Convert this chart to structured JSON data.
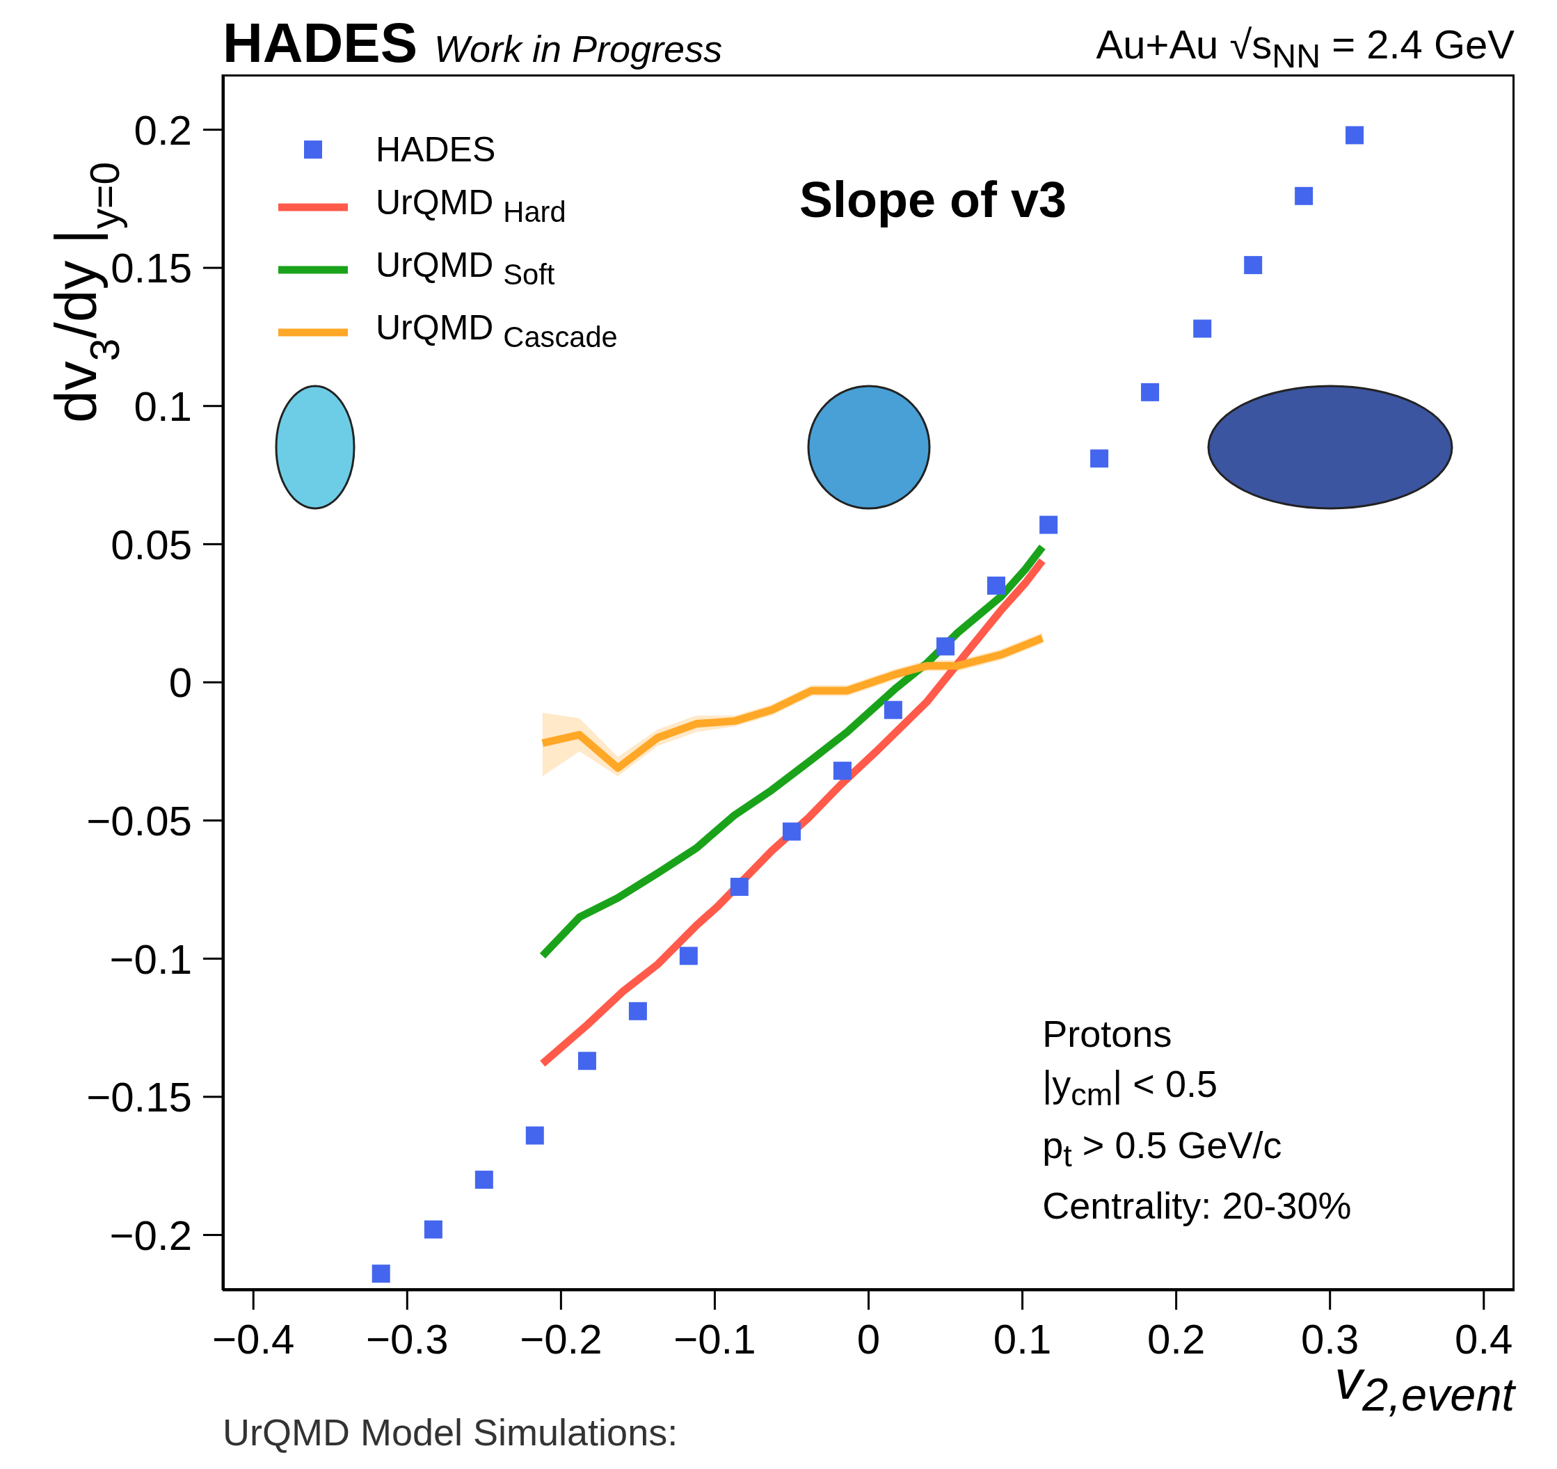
{
  "chart_data": {
    "type": "scatter",
    "title": "HADES",
    "subtitle": "Work in Progress",
    "xlabel": "v$_{2,event}$",
    "ylabel": "dv$_{3}$/dy |$_{y=0}$",
    "annotations": [
      "Au+Au √s$_{NN}$ = 2.4 GeV",
      "Slope of v3",
      "Protons",
      "|y$_{cm}$| < 0.5",
      "p$_{t}$ > 0.5 GeV/c",
      "Centrality: 20-30%",
      "UrQMD Model Simulations:"
    ],
    "xlim": [
      -0.42,
      0.42
    ],
    "xticks": [
      -0.4,
      -0.3,
      -0.2,
      -0.1,
      0,
      0.1,
      0.2,
      0.3,
      0.4
    ],
    "ylim": [
      -0.22,
      0.22
    ],
    "yticks": [
      -0.2,
      -0.15,
      -0.1,
      -0.05,
      0,
      0.05,
      0.1,
      0.15,
      0.2
    ],
    "grid": false,
    "legend": "top left",
    "series": [
      {
        "name": "HADES",
        "marker": "square",
        "color": "#4466ee",
        "x": [
          -0.317,
          -0.283,
          -0.25,
          -0.217,
          -0.183,
          -0.15,
          -0.117,
          -0.084,
          -0.05,
          -0.017,
          0.016,
          0.05,
          0.083,
          0.117,
          0.15,
          0.183,
          0.217,
          0.25,
          0.283,
          0.316
        ],
        "values": [
          -0.214,
          -0.198,
          -0.18,
          -0.164,
          -0.137,
          -0.119,
          -0.099,
          -0.074,
          -0.054,
          -0.032,
          -0.01,
          0.013,
          0.035,
          0.057,
          0.081,
          0.105,
          0.128,
          0.151,
          0.176,
          0.198
        ]
      },
      {
        "name": "UrQMD $_{Hard}$",
        "type": "line",
        "color": "#ff5a4a",
        "x": [
          -0.212,
          -0.183,
          -0.16,
          -0.137,
          -0.112,
          -0.098,
          -0.063,
          -0.039,
          -0.018,
          0.005,
          0.038,
          0.067,
          0.086,
          0.102,
          0.113
        ],
        "values": [
          -0.138,
          -0.124,
          -0.112,
          -0.102,
          -0.088,
          -0.081,
          -0.061,
          -0.049,
          -0.037,
          -0.025,
          -0.007,
          0.013,
          0.026,
          0.036,
          0.044
        ]
      },
      {
        "name": "UrQMD $_{Soft}$",
        "type": "line",
        "color": "#1aa31a",
        "x": [
          -0.212,
          -0.188,
          -0.163,
          -0.137,
          -0.112,
          -0.087,
          -0.063,
          -0.037,
          -0.014,
          0.018,
          0.038,
          0.058,
          0.086,
          0.102,
          0.113
        ],
        "values": [
          -0.099,
          -0.085,
          -0.078,
          -0.069,
          -0.06,
          -0.048,
          -0.039,
          -0.028,
          -0.018,
          -0.002,
          0.007,
          0.018,
          0.031,
          0.041,
          0.049
        ]
      },
      {
        "name": "UrQMD $_{Cascade}$",
        "type": "line",
        "color": "#ffa726",
        "x": [
          -0.212,
          -0.188,
          -0.163,
          -0.137,
          -0.112,
          -0.087,
          -0.063,
          -0.037,
          -0.014,
          0.018,
          0.038,
          0.058,
          0.086,
          0.113
        ],
        "values": [
          -0.022,
          -0.019,
          -0.031,
          -0.02,
          -0.015,
          -0.014,
          -0.01,
          -0.003,
          -0.003,
          0.003,
          0.006,
          0.006,
          0.01,
          0.016
        ],
        "lower": [
          -0.034,
          -0.025,
          -0.034,
          -0.023,
          -0.018,
          -0.016,
          -0.012,
          -0.005,
          -0.005,
          0.001,
          0.004,
          0.004,
          0.008,
          0.014
        ],
        "upper": [
          -0.011,
          -0.013,
          -0.027,
          -0.017,
          -0.012,
          -0.012,
          -0.008,
          -0.001,
          -0.001,
          0.005,
          0.008,
          0.008,
          0.012,
          0.018
        ]
      }
    ]
  }
}
